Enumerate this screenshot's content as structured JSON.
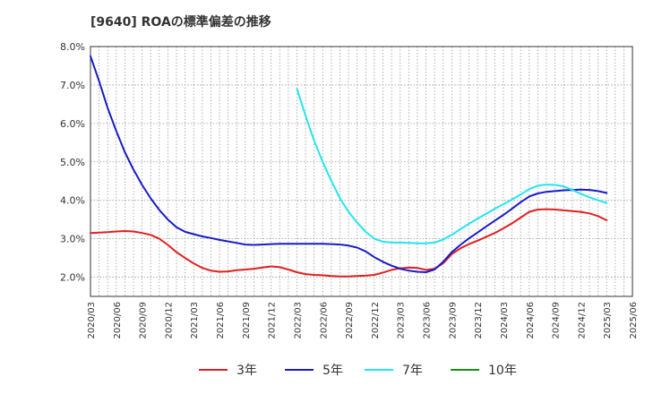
{
  "chart_data": {
    "type": "line",
    "title": "[9640]  ROAの標準偏差の推移",
    "xlabel": "",
    "ylabel": "",
    "x_ticks": [
      "2020/03",
      "2020/06",
      "2020/09",
      "2020/12",
      "2021/03",
      "2021/06",
      "2021/09",
      "2021/12",
      "2022/03",
      "2022/06",
      "2022/09",
      "2022/12",
      "2023/03",
      "2023/06",
      "2023/09",
      "2023/12",
      "2024/03",
      "2024/06",
      "2024/09",
      "2024/12",
      "2025/03",
      "2025/06"
    ],
    "y_ticks": [
      "2.0%",
      "3.0%",
      "4.0%",
      "5.0%",
      "6.0%",
      "7.0%",
      "8.0%"
    ],
    "ylim": [
      1.5,
      8.0
    ],
    "grid": true,
    "legend_position": "bottom",
    "series": [
      {
        "name": "3年",
        "color": "#e02020",
        "points": [
          [
            "2020/03",
            3.15
          ],
          [
            "2020/04",
            3.16
          ],
          [
            "2020/05",
            3.17
          ],
          [
            "2020/06",
            3.19
          ],
          [
            "2020/07",
            3.2
          ],
          [
            "2020/08",
            3.19
          ],
          [
            "2020/09",
            3.15
          ],
          [
            "2020/10",
            3.1
          ],
          [
            "2020/11",
            3.0
          ],
          [
            "2020/12",
            2.84
          ],
          [
            "2021/01",
            2.65
          ],
          [
            "2021/02",
            2.5
          ],
          [
            "2021/03",
            2.36
          ],
          [
            "2021/04",
            2.24
          ],
          [
            "2021/05",
            2.17
          ],
          [
            "2021/06",
            2.14
          ],
          [
            "2021/07",
            2.15
          ],
          [
            "2021/08",
            2.18
          ],
          [
            "2021/09",
            2.2
          ],
          [
            "2021/10",
            2.22
          ],
          [
            "2021/11",
            2.25
          ],
          [
            "2021/12",
            2.28
          ],
          [
            "2022/01",
            2.26
          ],
          [
            "2022/02",
            2.2
          ],
          [
            "2022/03",
            2.13
          ],
          [
            "2022/04",
            2.08
          ],
          [
            "2022/05",
            2.06
          ],
          [
            "2022/06",
            2.05
          ],
          [
            "2022/07",
            2.03
          ],
          [
            "2022/08",
            2.02
          ],
          [
            "2022/09",
            2.02
          ],
          [
            "2022/10",
            2.03
          ],
          [
            "2022/11",
            2.04
          ],
          [
            "2022/12",
            2.06
          ],
          [
            "2023/01",
            2.12
          ],
          [
            "2023/02",
            2.19
          ],
          [
            "2023/03",
            2.23
          ],
          [
            "2023/04",
            2.25
          ],
          [
            "2023/05",
            2.24
          ],
          [
            "2023/06",
            2.19
          ],
          [
            "2023/07",
            2.22
          ],
          [
            "2023/08",
            2.36
          ],
          [
            "2023/09",
            2.6
          ],
          [
            "2023/10",
            2.75
          ],
          [
            "2023/11",
            2.86
          ],
          [
            "2023/12",
            2.95
          ],
          [
            "2024/01",
            3.05
          ],
          [
            "2024/02",
            3.15
          ],
          [
            "2024/03",
            3.27
          ],
          [
            "2024/04",
            3.4
          ],
          [
            "2024/05",
            3.55
          ],
          [
            "2024/06",
            3.7
          ],
          [
            "2024/07",
            3.76
          ],
          [
            "2024/08",
            3.77
          ],
          [
            "2024/09",
            3.76
          ],
          [
            "2024/10",
            3.74
          ],
          [
            "2024/11",
            3.72
          ],
          [
            "2024/12",
            3.7
          ],
          [
            "2025/01",
            3.66
          ],
          [
            "2025/02",
            3.59
          ],
          [
            "2025/03",
            3.48
          ]
        ]
      },
      {
        "name": "5年",
        "color": "#1a1acc",
        "points": [
          [
            "2020/03",
            7.75
          ],
          [
            "2020/04",
            7.1
          ],
          [
            "2020/05",
            6.4
          ],
          [
            "2020/06",
            5.8
          ],
          [
            "2020/07",
            5.25
          ],
          [
            "2020/08",
            4.8
          ],
          [
            "2020/09",
            4.4
          ],
          [
            "2020/10",
            4.05
          ],
          [
            "2020/11",
            3.75
          ],
          [
            "2020/12",
            3.5
          ],
          [
            "2021/01",
            3.3
          ],
          [
            "2021/02",
            3.18
          ],
          [
            "2021/03",
            3.12
          ],
          [
            "2021/04",
            3.06
          ],
          [
            "2021/05",
            3.02
          ],
          [
            "2021/06",
            2.97
          ],
          [
            "2021/07",
            2.93
          ],
          [
            "2021/08",
            2.89
          ],
          [
            "2021/09",
            2.85
          ],
          [
            "2021/10",
            2.84
          ],
          [
            "2021/11",
            2.85
          ],
          [
            "2021/12",
            2.86
          ],
          [
            "2022/01",
            2.87
          ],
          [
            "2022/02",
            2.87
          ],
          [
            "2022/03",
            2.87
          ],
          [
            "2022/04",
            2.87
          ],
          [
            "2022/05",
            2.87
          ],
          [
            "2022/06",
            2.87
          ],
          [
            "2022/07",
            2.86
          ],
          [
            "2022/08",
            2.85
          ],
          [
            "2022/09",
            2.82
          ],
          [
            "2022/10",
            2.77
          ],
          [
            "2022/11",
            2.67
          ],
          [
            "2022/12",
            2.52
          ],
          [
            "2023/01",
            2.4
          ],
          [
            "2023/02",
            2.3
          ],
          [
            "2023/03",
            2.22
          ],
          [
            "2023/04",
            2.17
          ],
          [
            "2023/05",
            2.14
          ],
          [
            "2023/06",
            2.13
          ],
          [
            "2023/07",
            2.2
          ],
          [
            "2023/08",
            2.4
          ],
          [
            "2023/09",
            2.65
          ],
          [
            "2023/10",
            2.84
          ],
          [
            "2023/11",
            3.01
          ],
          [
            "2023/12",
            3.16
          ],
          [
            "2024/01",
            3.32
          ],
          [
            "2024/02",
            3.47
          ],
          [
            "2024/03",
            3.62
          ],
          [
            "2024/04",
            3.78
          ],
          [
            "2024/05",
            3.95
          ],
          [
            "2024/06",
            4.1
          ],
          [
            "2024/07",
            4.18
          ],
          [
            "2024/08",
            4.22
          ],
          [
            "2024/09",
            4.24
          ],
          [
            "2024/10",
            4.26
          ],
          [
            "2024/11",
            4.27
          ],
          [
            "2024/12",
            4.28
          ],
          [
            "2025/01",
            4.27
          ],
          [
            "2025/02",
            4.24
          ],
          [
            "2025/03",
            4.19
          ]
        ]
      },
      {
        "name": "7年",
        "color": "#22e5f0",
        "points": [
          [
            "2022/03",
            6.9
          ],
          [
            "2022/04",
            6.2
          ],
          [
            "2022/05",
            5.55
          ],
          [
            "2022/06",
            5.0
          ],
          [
            "2022/07",
            4.5
          ],
          [
            "2022/08",
            4.05
          ],
          [
            "2022/09",
            3.7
          ],
          [
            "2022/10",
            3.42
          ],
          [
            "2022/11",
            3.18
          ],
          [
            "2022/12",
            3.0
          ],
          [
            "2023/01",
            2.92
          ],
          [
            "2023/02",
            2.9
          ],
          [
            "2023/03",
            2.9
          ],
          [
            "2023/04",
            2.89
          ],
          [
            "2023/05",
            2.88
          ],
          [
            "2023/06",
            2.88
          ],
          [
            "2023/07",
            2.9
          ],
          [
            "2023/08",
            2.98
          ],
          [
            "2023/09",
            3.1
          ],
          [
            "2023/10",
            3.25
          ],
          [
            "2023/11",
            3.39
          ],
          [
            "2023/12",
            3.52
          ],
          [
            "2024/01",
            3.65
          ],
          [
            "2024/02",
            3.78
          ],
          [
            "2024/03",
            3.9
          ],
          [
            "2024/04",
            4.02
          ],
          [
            "2024/05",
            4.15
          ],
          [
            "2024/06",
            4.29
          ],
          [
            "2024/07",
            4.38
          ],
          [
            "2024/08",
            4.41
          ],
          [
            "2024/09",
            4.4
          ],
          [
            "2024/10",
            4.36
          ],
          [
            "2024/11",
            4.27
          ],
          [
            "2024/12",
            4.17
          ],
          [
            "2025/01",
            4.08
          ],
          [
            "2025/02",
            4.0
          ],
          [
            "2025/03",
            3.93
          ]
        ]
      },
      {
        "name": "10年",
        "color": "#1a8c1a",
        "points": []
      }
    ]
  }
}
